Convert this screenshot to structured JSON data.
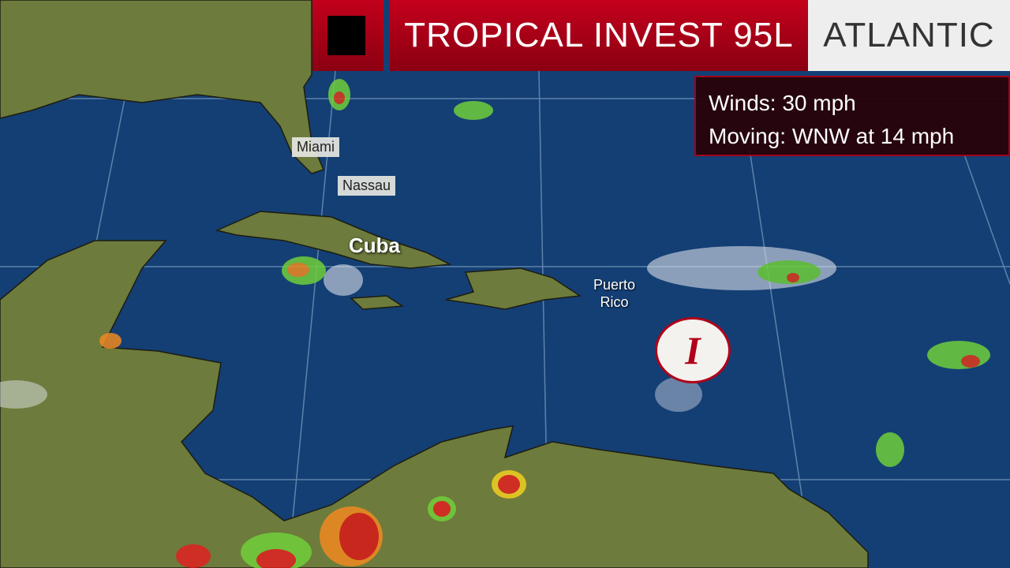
{
  "banner": {
    "title": "TROPICAL INVEST 95L",
    "region": "ATLANTIC"
  },
  "info": {
    "winds": "Winds: 30 mph",
    "moving": "Moving: WNW at 14 mph"
  },
  "map": {
    "city_labels": [
      "Miami",
      "Nassau"
    ],
    "country_label": "Cuba",
    "island_label_line1": "Puerto",
    "island_label_line2": "Rico",
    "storm_symbol": "I",
    "colors": {
      "ocean": "#123d72",
      "land": "#6b7a3a",
      "banner_red": "#b0001a",
      "storm_red": "#b0001a"
    }
  }
}
